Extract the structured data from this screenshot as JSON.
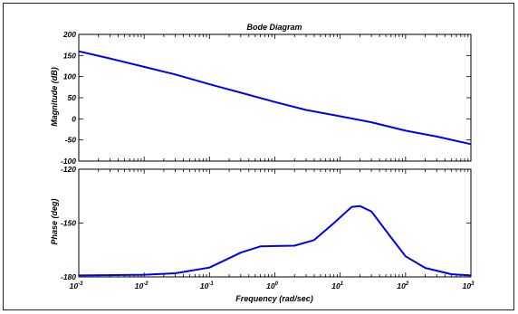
{
  "chart_data": {
    "type": "line",
    "title": "Bode Diagram",
    "xlabel": "Frequency  (rad/sec)",
    "x_scale": "log",
    "xlim": [
      0.001,
      1000
    ],
    "x_ticks": [
      {
        "base": "10",
        "exp": "-3"
      },
      {
        "base": "10",
        "exp": "-2"
      },
      {
        "base": "10",
        "exp": "-1"
      },
      {
        "base": "10",
        "exp": "0"
      },
      {
        "base": "10",
        "exp": "1"
      },
      {
        "base": "10",
        "exp": "2"
      },
      {
        "base": "10",
        "exp": "3"
      }
    ],
    "grid": false,
    "color": "#0000ee",
    "panels": [
      {
        "ylabel": "Magnitude (dB)",
        "ylim": [
          -100,
          200
        ],
        "y_ticks": [
          "200",
          "150",
          "100",
          "50",
          "0",
          "-50",
          "-100"
        ],
        "x": [
          0.001,
          0.003,
          0.01,
          0.03,
          0.1,
          0.3,
          1,
          3,
          10,
          30,
          100,
          300,
          1000
        ],
        "y": [
          160,
          143,
          123,
          105,
          82,
          62,
          40,
          21,
          6,
          -8,
          -28,
          -42,
          -60
        ]
      },
      {
        "ylabel": "Phase (deg)",
        "ylim": [
          -180,
          -120
        ],
        "y_ticks": [
          "-120",
          "-150",
          "-180"
        ],
        "x": [
          0.001,
          0.01,
          0.03,
          0.1,
          0.3,
          0.6,
          1,
          2,
          4,
          8,
          15,
          20,
          30,
          60,
          100,
          200,
          500,
          1000
        ],
        "y": [
          -179.2,
          -178.8,
          -178.0,
          -174.8,
          -166.5,
          -163.0,
          -162.8,
          -162.6,
          -159.5,
          -150.0,
          -141.0,
          -140.5,
          -143.5,
          -158.0,
          -168.5,
          -175.0,
          -178.5,
          -179.2
        ]
      }
    ]
  }
}
